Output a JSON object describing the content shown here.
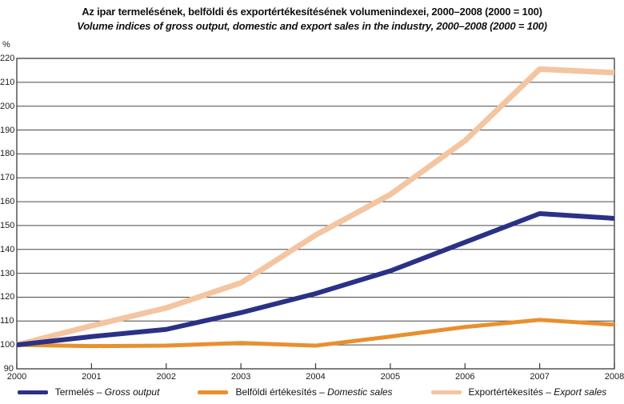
{
  "chart_data": {
    "type": "line",
    "title": "Az ipar termelésének, belföldi és exportértékesítésének volumenindexei, 2000–2008 (2000 = 100)",
    "subtitle": "Volume indices of gross output, domestic and export sales in the industry, 2000–2008 (2000 = 100)",
    "ylabel": "%",
    "x": [
      2000,
      2001,
      2002,
      2003,
      2004,
      2005,
      2006,
      2007,
      2008
    ],
    "ylim": [
      90,
      220
    ],
    "yticks": [
      90,
      100,
      110,
      120,
      130,
      140,
      150,
      160,
      170,
      180,
      190,
      200,
      210,
      220
    ],
    "grid": true,
    "legend_position": "bottom",
    "axis_color": "#3a3a3a",
    "grid_color": "#474747",
    "series": [
      {
        "name": "Termelés – Gross output",
        "legend_prefix": "Termelés – ",
        "legend_italic": "Gross output",
        "color": "#2b3186",
        "stroke_width": 6,
        "values": [
          100,
          103.5,
          106.5,
          113.5,
          121.5,
          131,
          143,
          155,
          153
        ]
      },
      {
        "name": "Belföldi értékesítés – Domestic sales",
        "legend_prefix": "Belföldi értékesítés – ",
        "legend_italic": "Domestic sales",
        "color": "#e8902e",
        "stroke_width": 5,
        "values": [
          100,
          99.5,
          99.7,
          100.8,
          99.7,
          103.5,
          107.5,
          110.5,
          108.5
        ]
      },
      {
        "name": "Exportértékesítés – Export sales",
        "legend_prefix": "Exportértékesítés – ",
        "legend_italic": "Export sales",
        "color": "#f3c5a1",
        "stroke_width": 7,
        "values": [
          100,
          108,
          115.5,
          126,
          146,
          163,
          185.5,
          215.5,
          214
        ]
      }
    ]
  }
}
